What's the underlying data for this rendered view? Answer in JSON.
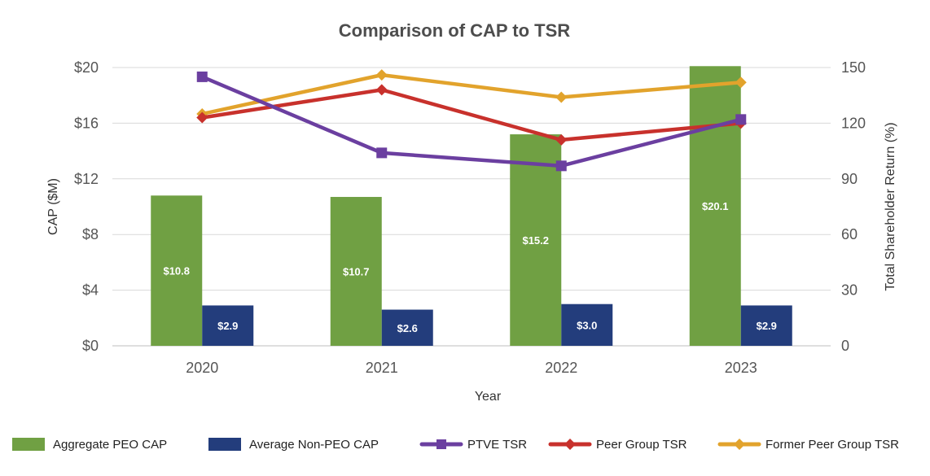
{
  "chart_data": {
    "type": "bar",
    "title": "Comparison of CAP to TSR",
    "xlabel": "Year",
    "ylabel": "CAP ($M)",
    "y2label": "Total Shareholder Return (%)",
    "categories": [
      "2020",
      "2021",
      "2022",
      "2023"
    ],
    "ylim": [
      0,
      20
    ],
    "y2lim": [
      0,
      150
    ],
    "yticks": [
      0,
      4,
      8,
      12,
      16,
      20
    ],
    "ytick_labels": [
      "$0",
      "$4",
      "$8",
      "$12",
      "$16",
      "$20"
    ],
    "y2ticks": [
      0,
      30,
      60,
      90,
      120,
      150
    ],
    "y2tick_labels": [
      "0",
      "30",
      "60",
      "90",
      "120",
      "150"
    ],
    "grid": true,
    "legend_position": "bottom",
    "bar_series": [
      {
        "name": "Aggregate PEO CAP",
        "color": "#70A043",
        "values": [
          10.8,
          10.7,
          15.2,
          20.1
        ],
        "labels": [
          "$10.8",
          "$10.7",
          "$15.2",
          "$20.1"
        ]
      },
      {
        "name": "Average Non-PEO CAP",
        "color": "#233D7C",
        "values": [
          2.9,
          2.6,
          3.0,
          2.9
        ],
        "labels": [
          "$2.9",
          "$2.6",
          "$3.0",
          "$2.9"
        ]
      }
    ],
    "line_series": [
      {
        "name": "PTVE TSR",
        "color": "#6B3FA0",
        "marker": "square",
        "values": [
          145,
          104,
          97,
          122
        ]
      },
      {
        "name": "Peer Group TSR",
        "color": "#C8312C",
        "marker": "diamond",
        "values": [
          123,
          138,
          111,
          120
        ]
      },
      {
        "name": "Former Peer Group TSR",
        "color": "#E2A32C",
        "marker": "diamond",
        "values": [
          125,
          146,
          134,
          142
        ]
      }
    ]
  }
}
